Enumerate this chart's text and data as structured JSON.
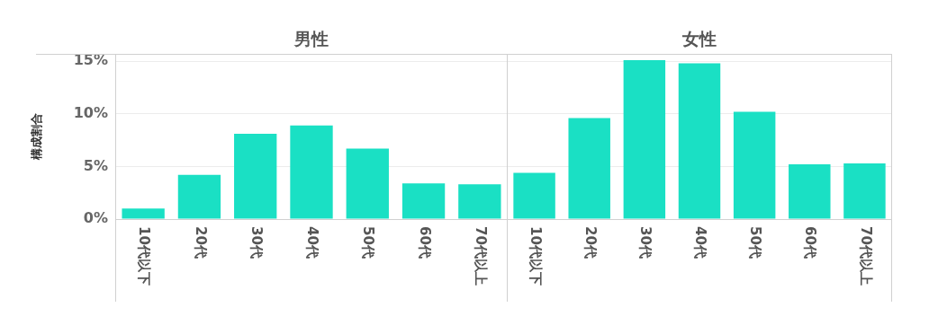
{
  "chart_data": [
    {
      "type": "bar",
      "title": "男性",
      "ylabel": "構成割合",
      "categories": [
        "10代以下",
        "20代",
        "30代",
        "40代",
        "50代",
        "60代",
        "70代以上"
      ],
      "values": [
        1.0,
        4.2,
        8.1,
        8.9,
        6.7,
        3.4,
        3.3
      ],
      "color": "#1ae0c4",
      "ylim": [
        0,
        15.7
      ],
      "yticks": [
        {
          "value": 0,
          "label": "0%"
        },
        {
          "value": 5,
          "label": "5%"
        },
        {
          "value": 10,
          "label": "10%"
        },
        {
          "value": 15,
          "label": "15%"
        }
      ],
      "grid": "y"
    },
    {
      "type": "bar",
      "title": "女性",
      "categories": [
        "10代以下",
        "20代",
        "30代",
        "40代",
        "50代",
        "60代",
        "70代以上"
      ],
      "values": [
        4.4,
        9.6,
        15.1,
        14.8,
        10.2,
        5.2,
        5.3
      ],
      "color": "#1ae0c4",
      "ylim": [
        0,
        15.7
      ],
      "yticks": [
        0,
        5,
        10,
        15
      ],
      "grid": "y",
      "tick_labels": "x"
    }
  ]
}
